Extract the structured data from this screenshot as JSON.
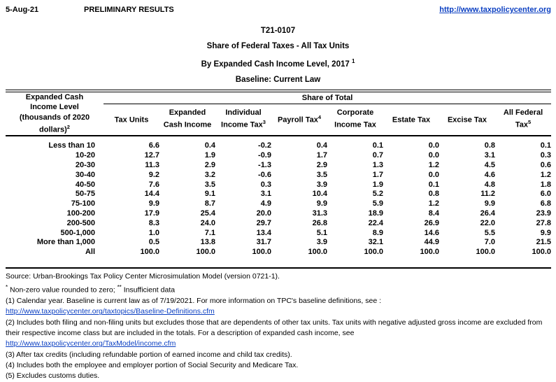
{
  "colors": {
    "link": "#0b3fc2",
    "text": "#000000",
    "border": "#000000"
  },
  "page": {
    "date": "5-Aug-21",
    "preliminary": "PRELIMINARY RESULTS",
    "site_link": "http://www.taxpolicycenter.org"
  },
  "title": {
    "table_number": "T21-0107",
    "line1": "Share of Federal Taxes - All Tax Units",
    "line2": "By Expanded Cash Income Level, 2017 ",
    "line2_sup": "1",
    "line3": "Baseline: Current Law"
  },
  "table": {
    "row_header": {
      "lines": [
        "Expanded Cash",
        "Income Level",
        "(thousands of 2020",
        "dollars)"
      ],
      "sup": "2"
    },
    "span_header": "Share of Total",
    "columns": [
      {
        "label": "Tax Units",
        "sup": ""
      },
      {
        "label": "Expanded Cash Income",
        "sup": ""
      },
      {
        "label": "Individual Income Tax",
        "sup": "3"
      },
      {
        "label": "Payroll Tax",
        "sup": "4"
      },
      {
        "label": "Corporate Income Tax",
        "sup": ""
      },
      {
        "label": "Estate Tax",
        "sup": ""
      },
      {
        "label": "Excise Tax",
        "sup": ""
      },
      {
        "label": "All Federal Tax",
        "sup": "5"
      }
    ],
    "rows": [
      {
        "label": "Less than 10",
        "values": [
          "6.6",
          "0.4",
          "-0.2",
          "0.4",
          "0.1",
          "0.0",
          "0.8",
          "0.1"
        ]
      },
      {
        "label": "10-20",
        "values": [
          "12.7",
          "1.9",
          "-0.9",
          "1.7",
          "0.7",
          "0.0",
          "3.1",
          "0.3"
        ]
      },
      {
        "label": "20-30",
        "values": [
          "11.3",
          "2.9",
          "-1.3",
          "2.9",
          "1.3",
          "1.2",
          "4.5",
          "0.6"
        ]
      },
      {
        "label": "30-40",
        "values": [
          "9.2",
          "3.2",
          "-0.6",
          "3.5",
          "1.7",
          "0.0",
          "4.6",
          "1.2"
        ]
      },
      {
        "label": "40-50",
        "values": [
          "7.6",
          "3.5",
          "0.3",
          "3.9",
          "1.9",
          "0.1",
          "4.8",
          "1.8"
        ]
      },
      {
        "label": "50-75",
        "values": [
          "14.4",
          "9.1",
          "3.1",
          "10.4",
          "5.2",
          "0.8",
          "11.2",
          "6.0"
        ]
      },
      {
        "label": "75-100",
        "values": [
          "9.9",
          "8.7",
          "4.9",
          "9.9",
          "5.9",
          "1.2",
          "9.9",
          "6.8"
        ]
      },
      {
        "label": "100-200",
        "values": [
          "17.9",
          "25.4",
          "20.0",
          "31.3",
          "18.9",
          "8.4",
          "26.4",
          "23.9"
        ]
      },
      {
        "label": "200-500",
        "values": [
          "8.3",
          "24.0",
          "29.7",
          "26.8",
          "22.4",
          "26.9",
          "22.0",
          "27.8"
        ]
      },
      {
        "label": "500-1,000",
        "values": [
          "1.0",
          "7.1",
          "13.4",
          "5.1",
          "8.9",
          "14.6",
          "5.5",
          "9.9"
        ]
      },
      {
        "label": "More than 1,000",
        "values": [
          "0.5",
          "13.8",
          "31.7",
          "3.9",
          "32.1",
          "44.9",
          "7.0",
          "21.5"
        ]
      },
      {
        "label": "All",
        "values": [
          "100.0",
          "100.0",
          "100.0",
          "100.0",
          "100.0",
          "100.0",
          "100.0",
          "100.0"
        ]
      }
    ]
  },
  "footnotes": [
    {
      "segments": [
        {
          "type": "text",
          "text": "Source: Urban-Brookings Tax Policy Center Microsimulation Model (version 0721-1)."
        }
      ]
    },
    {
      "segments": [
        {
          "type": "sup",
          "text": "*"
        },
        {
          "type": "text",
          "text": " Non-zero value rounded to zero; "
        },
        {
          "type": "sup",
          "text": "**"
        },
        {
          "type": "text",
          "text": " Insufficient data"
        }
      ]
    },
    {
      "segments": [
        {
          "type": "text",
          "text": "(1) Calendar year. Baseline is current law as of 7/19/2021. For more information on TPC's baseline definitions, see :"
        }
      ]
    },
    {
      "segments": [
        {
          "type": "link",
          "text": "http://www.taxpolicycenter.org/taxtopics/Baseline-Definitions.cfm"
        }
      ]
    },
    {
      "segments": [
        {
          "type": "text",
          "text": "(2) Includes both filing and non-filing units but excludes those that are dependents of other tax units. Tax units with negative adjusted gross income are excluded from their respective income class but are included in the totals. For a description of expanded cash income, see"
        }
      ]
    },
    {
      "segments": [
        {
          "type": "link",
          "text": "http://www.taxpolicycenter.org/TaxModel/income.cfm"
        }
      ]
    },
    {
      "segments": [
        {
          "type": "text",
          "text": "(3) After tax credits (including refundable portion of earned income and child tax credits)."
        }
      ]
    },
    {
      "segments": [
        {
          "type": "text",
          "text": "(4) Includes both the employee and employer portion of Social Security and Medicare Tax."
        }
      ]
    },
    {
      "segments": [
        {
          "type": "text",
          "text": "(5) Excludes customs duties."
        }
      ]
    }
  ]
}
